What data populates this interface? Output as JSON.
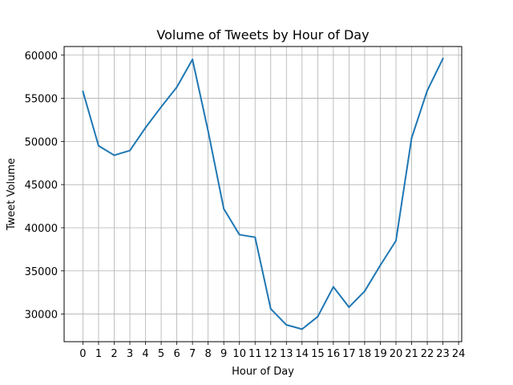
{
  "chart_data": {
    "type": "line",
    "title": "Volume of Tweets by Hour of Day",
    "xlabel": "Hour of Day",
    "ylabel": "Tweet Volume",
    "xlim": [
      -1.2,
      24.2
    ],
    "ylim": [
      26800,
      61000
    ],
    "xticks": [
      0,
      1,
      2,
      3,
      4,
      5,
      6,
      7,
      8,
      9,
      10,
      11,
      12,
      13,
      14,
      15,
      16,
      17,
      18,
      19,
      20,
      21,
      22,
      23,
      24
    ],
    "yticks": [
      30000,
      35000,
      40000,
      45000,
      50000,
      55000,
      60000
    ],
    "grid": true,
    "series": [
      {
        "color": "#1f77b4",
        "x": [
          0,
          1,
          2,
          3,
          4,
          5,
          6,
          7,
          8,
          9,
          10,
          11,
          12,
          13,
          14,
          15,
          16,
          17,
          18,
          19,
          20,
          21,
          22,
          23
        ],
        "values": [
          55800,
          49500,
          48400,
          48950,
          51600,
          54000,
          56300,
          59500,
          51200,
          42200,
          39200,
          38900,
          30600,
          28750,
          28250,
          29700,
          33150,
          30800,
          32650,
          35650,
          38500,
          50400,
          55900,
          59600
        ]
      }
    ]
  }
}
